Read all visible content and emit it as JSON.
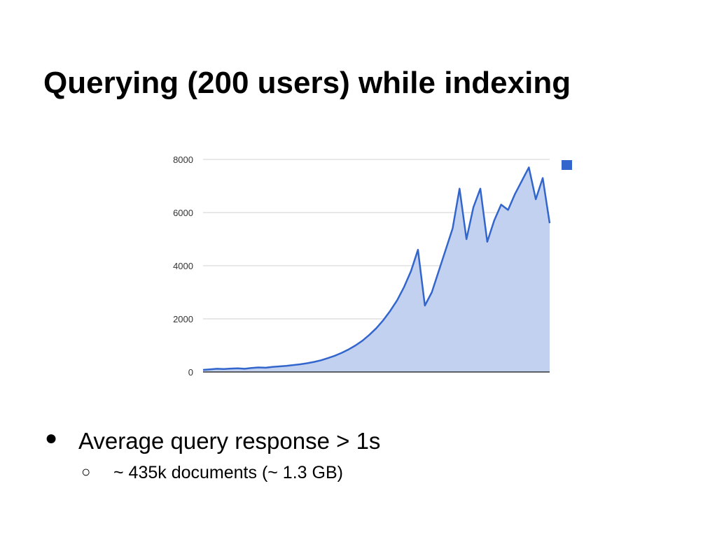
{
  "slide": {
    "title": "Querying (200 users) while indexing",
    "bullets": [
      {
        "marker": "●",
        "text": "Average query response > 1s"
      },
      {
        "marker": "○",
        "text": "~ 435k documents (~ 1.3 GB)"
      }
    ]
  },
  "colors": {
    "line": "#3366cc",
    "area": "#c2d1ef",
    "grid": "#d0d0d0",
    "axis": "#333333"
  },
  "chart_data": {
    "type": "area",
    "title": "",
    "xlabel": "",
    "ylabel": "",
    "ylim": [
      0,
      8000
    ],
    "yticks": [
      "0",
      "2000",
      "4000",
      "6000",
      "8000"
    ],
    "grid": true,
    "legend": "top-right",
    "series": [
      {
        "x": [
          0,
          2,
          4,
          6,
          8,
          10,
          12,
          14,
          16,
          18,
          20,
          22,
          24,
          26,
          28,
          30,
          32,
          34,
          36,
          38,
          40,
          42,
          44,
          46,
          48,
          50,
          52,
          54,
          56,
          58,
          60,
          62,
          64,
          66,
          68,
          70,
          72,
          74,
          76,
          78,
          80,
          82,
          84,
          86,
          88,
          90,
          92,
          94,
          96,
          98,
          100
        ],
        "values": [
          80,
          100,
          120,
          110,
          130,
          140,
          120,
          150,
          170,
          160,
          190,
          210,
          230,
          260,
          290,
          330,
          380,
          440,
          520,
          610,
          720,
          850,
          1000,
          1180,
          1400,
          1650,
          1950,
          2300,
          2700,
          3200,
          3800,
          4600,
          2500,
          3000,
          3800,
          4600,
          5400,
          6900,
          5000,
          6200,
          6900,
          4900,
          5700,
          6300,
          6100,
          6700,
          7200,
          7700,
          6500,
          7300,
          5600
        ]
      }
    ]
  }
}
